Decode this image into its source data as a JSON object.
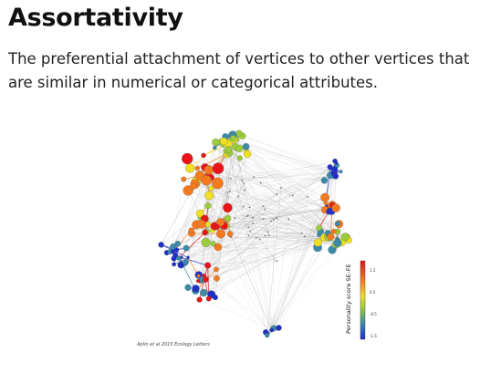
{
  "slide": {
    "title": "Assortativity",
    "description": "The preferential attachment of vertices to other vertices that are similar in numerical or categorical attributes."
  },
  "figure": {
    "caption": "Aplin et al 2015 Ecology Letters",
    "colorbar": {
      "title": "Personality score SE–FE",
      "ticks": [
        "1.5",
        "0.5",
        "-0.5",
        "-1.5"
      ],
      "colors": [
        "#e8141a",
        "#f47a20",
        "#f0e020",
        "#9ccc3a",
        "#3a8aa8",
        "#1f2fc8"
      ]
    }
  }
}
